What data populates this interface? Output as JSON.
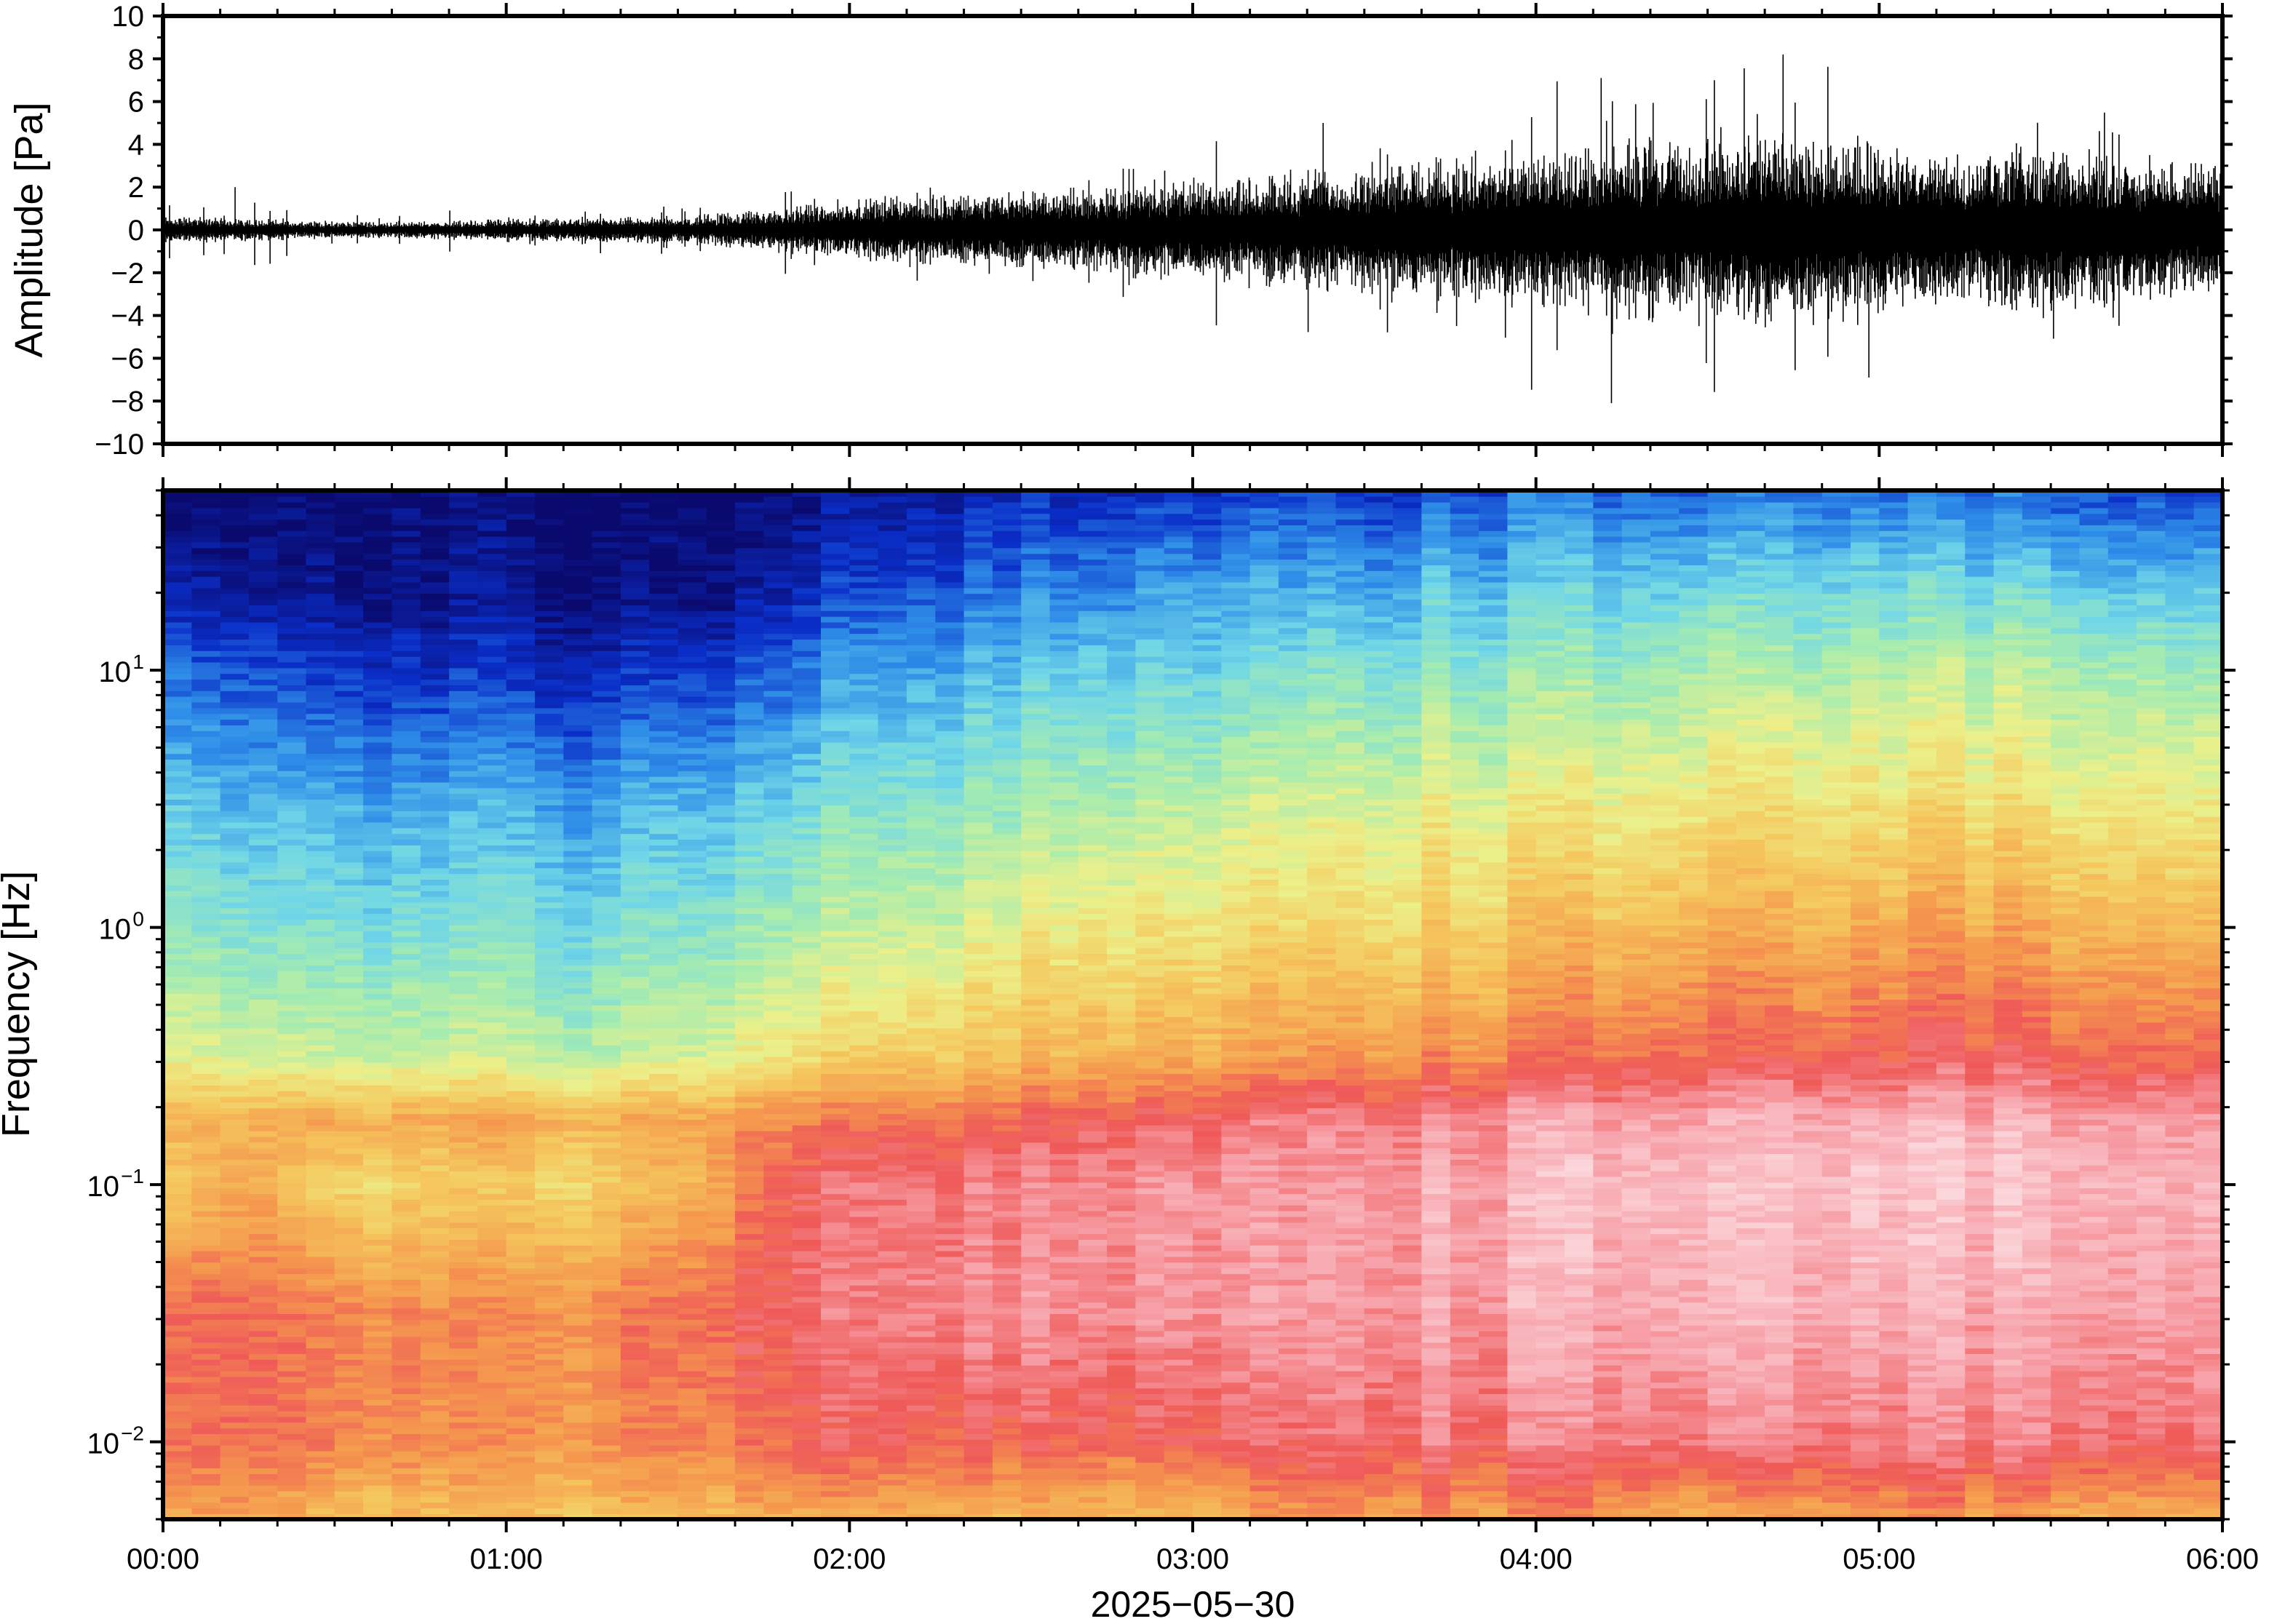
{
  "chart_data": [
    {
      "type": "line",
      "panel": "waveform",
      "xlabel": "",
      "ylabel": "Amplitude [Pa]",
      "ylim": [
        -10,
        10
      ],
      "xlim_hours": [
        0,
        6
      ],
      "yticks": [
        10,
        8,
        6,
        4,
        2,
        0,
        -2,
        -4,
        -6,
        -8,
        -10
      ],
      "ytick_labels": [
        "10",
        "8",
        "6",
        "4",
        "2",
        "0",
        "−2",
        "−4",
        "−6",
        "−8",
        "−10"
      ],
      "grid": false,
      "envelope": {
        "time_hours": [
          0.0,
          0.25,
          0.5,
          0.75,
          1.0,
          1.25,
          1.5,
          1.75,
          2.0,
          2.25,
          2.5,
          2.75,
          3.0,
          3.25,
          3.5,
          3.75,
          4.0,
          4.25,
          4.5,
          4.75,
          5.0,
          5.25,
          5.5,
          5.75,
          6.0
        ],
        "typical_peak_pa": [
          0.5,
          0.4,
          0.3,
          0.3,
          0.4,
          0.4,
          0.5,
          0.7,
          1.1,
          1.3,
          1.4,
          1.5,
          1.8,
          2.0,
          2.3,
          2.5,
          2.6,
          3.0,
          3.2,
          3.4,
          3.0,
          2.8,
          2.9,
          2.6,
          2.4
        ],
        "max_peak_pa": [
          2.0,
          1.8,
          0.8,
          1.2,
          1.0,
          1.0,
          1.2,
          1.8,
          2.6,
          3.0,
          3.2,
          3.6,
          4.2,
          4.6,
          5.2,
          6.0,
          7.0,
          7.4,
          7.0,
          8.2,
          6.8,
          5.8,
          5.6,
          5.4,
          4.8
        ]
      },
      "notable_peaks": [
        {
          "t_hours": 4.22,
          "y_pa": -8.1
        },
        {
          "t_hours": 4.72,
          "y_pa": 8.2
        },
        {
          "t_hours": 4.19,
          "y_pa": 7.1
        },
        {
          "t_hours": 4.97,
          "y_pa": -6.9
        },
        {
          "t_hours": 3.38,
          "y_pa": 5.0
        },
        {
          "t_hours": 0.21,
          "y_pa": 2.0
        }
      ]
    },
    {
      "type": "heatmap",
      "panel": "spectrogram",
      "xlabel": "",
      "ylabel": "Frequency [Hz]",
      "yscale": "log",
      "ylim": [
        0.005,
        50
      ],
      "xlim_hours": [
        0,
        6
      ],
      "ytick_labels": [
        {
          "base": "10",
          "exp": "1",
          "value": 10
        },
        {
          "base": "10",
          "exp": "0",
          "value": 1
        },
        {
          "base": "10",
          "exp": "−1",
          "value": 0.1
        },
        {
          "base": "10",
          "exp": "−2",
          "value": 0.01
        }
      ],
      "colormap": "rainbow (dark blue = low power, pink/white = high power)",
      "colormap_stops": [
        "#0a0a6e",
        "#0a2ec8",
        "#2f8ee8",
        "#6fd6e8",
        "#a6ecb0",
        "#ecf08a",
        "#f5c85e",
        "#f59a4e",
        "#ef5a58",
        "#f7a0a8",
        "#fbd6da"
      ],
      "color_level_grid": {
        "time_hours": [
          0.0,
          0.25,
          0.5,
          0.75,
          1.0,
          1.25,
          1.5,
          1.75,
          2.0,
          2.25,
          2.5,
          2.75,
          3.0,
          3.25,
          3.5,
          3.75,
          4.0,
          4.25,
          4.5,
          4.75,
          5.0,
          5.25,
          5.5,
          5.75,
          6.0
        ],
        "log10_freq_hz": [
          -2.3,
          -2.0,
          -1.5,
          -1.0,
          -0.75,
          -0.5,
          0.0,
          0.5,
          1.0,
          1.3,
          1.7
        ],
        "levels_0_to_1": [
          [
            0.68,
            0.77,
            0.79,
            0.59,
            0.66,
            0.51,
            0.39,
            0.3,
            0.18,
            0.09,
            0.0
          ],
          [
            0.7,
            0.79,
            0.79,
            0.68,
            0.66,
            0.47,
            0.35,
            0.26,
            0.14,
            0.05,
            0.0
          ],
          [
            0.59,
            0.72,
            0.72,
            0.55,
            0.66,
            0.44,
            0.32,
            0.23,
            0.09,
            0.02,
            0.0
          ],
          [
            0.61,
            0.72,
            0.72,
            0.57,
            0.66,
            0.44,
            0.32,
            0.23,
            0.09,
            0.02,
            0.0
          ],
          [
            0.61,
            0.7,
            0.7,
            0.57,
            0.66,
            0.44,
            0.32,
            0.23,
            0.09,
            0.02,
            0.0
          ],
          [
            0.63,
            0.72,
            0.74,
            0.59,
            0.66,
            0.44,
            0.33,
            0.23,
            0.09,
            0.02,
            0.0
          ],
          [
            0.63,
            0.74,
            0.77,
            0.63,
            0.68,
            0.47,
            0.35,
            0.26,
            0.11,
            0.02,
            0.0
          ],
          [
            0.66,
            0.77,
            0.81,
            0.77,
            0.72,
            0.51,
            0.39,
            0.28,
            0.14,
            0.05,
            0.0
          ],
          [
            0.68,
            0.81,
            0.86,
            0.86,
            0.77,
            0.59,
            0.45,
            0.35,
            0.23,
            0.14,
            0.05
          ],
          [
            0.68,
            0.81,
            0.88,
            0.86,
            0.79,
            0.61,
            0.47,
            0.37,
            0.25,
            0.16,
            0.07
          ],
          [
            0.63,
            0.79,
            0.88,
            0.86,
            0.79,
            0.63,
            0.51,
            0.39,
            0.28,
            0.18,
            0.09
          ],
          [
            0.63,
            0.79,
            0.88,
            0.88,
            0.81,
            0.65,
            0.53,
            0.42,
            0.3,
            0.21,
            0.09
          ],
          [
            0.61,
            0.79,
            0.88,
            0.88,
            0.81,
            0.65,
            0.53,
            0.42,
            0.3,
            0.23,
            0.09
          ],
          [
            0.68,
            0.81,
            0.88,
            0.88,
            0.84,
            0.68,
            0.55,
            0.44,
            0.32,
            0.23,
            0.11
          ],
          [
            0.7,
            0.84,
            0.9,
            0.9,
            0.86,
            0.7,
            0.57,
            0.47,
            0.35,
            0.25,
            0.11
          ],
          [
            0.7,
            0.84,
            0.9,
            0.92,
            0.88,
            0.72,
            0.59,
            0.49,
            0.37,
            0.28,
            0.14
          ],
          [
            0.7,
            0.84,
            0.92,
            0.94,
            0.9,
            0.74,
            0.61,
            0.49,
            0.37,
            0.28,
            0.16
          ],
          [
            0.7,
            0.86,
            0.92,
            0.96,
            0.92,
            0.77,
            0.63,
            0.51,
            0.39,
            0.3,
            0.16
          ],
          [
            0.63,
            0.86,
            0.94,
            0.96,
            0.92,
            0.79,
            0.66,
            0.53,
            0.42,
            0.32,
            0.16
          ],
          [
            0.7,
            0.86,
            0.94,
            0.96,
            0.94,
            0.79,
            0.66,
            0.55,
            0.42,
            0.32,
            0.18
          ],
          [
            0.72,
            0.86,
            0.94,
            0.98,
            0.94,
            0.81,
            0.68,
            0.55,
            0.44,
            0.35,
            0.18
          ],
          [
            0.7,
            0.86,
            0.92,
            0.96,
            0.94,
            0.81,
            0.68,
            0.55,
            0.44,
            0.32,
            0.16
          ],
          [
            0.68,
            0.86,
            0.92,
            0.96,
            0.92,
            0.79,
            0.66,
            0.53,
            0.42,
            0.32,
            0.16
          ],
          [
            0.66,
            0.84,
            0.92,
            0.94,
            0.92,
            0.79,
            0.66,
            0.53,
            0.42,
            0.3,
            0.14
          ],
          [
            0.66,
            0.84,
            0.9,
            0.94,
            0.9,
            0.77,
            0.63,
            0.51,
            0.39,
            0.28,
            0.14
          ]
        ]
      }
    }
  ],
  "x_axis": {
    "tick_labels": [
      "00:00",
      "01:00",
      "02:00",
      "03:00",
      "04:00",
      "05:00",
      "06:00"
    ],
    "tick_hours": [
      0,
      1,
      2,
      3,
      4,
      5,
      6
    ],
    "date_label": "2025−05−30"
  }
}
